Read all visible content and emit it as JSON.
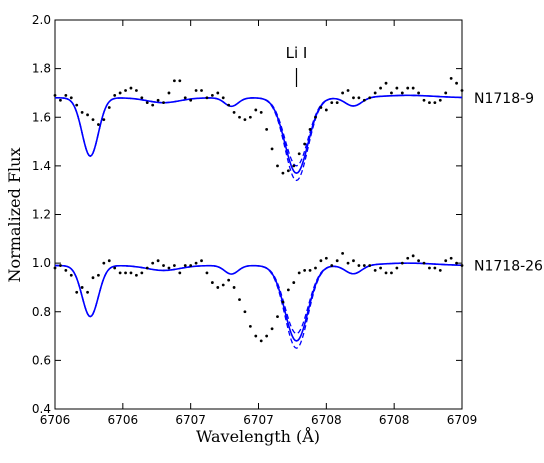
{
  "chart_data": {
    "type": "line",
    "title": "",
    "xlabel": "Wavelength (Å)",
    "ylabel": "Normalized Flux",
    "xlim": [
      6706.0,
      6709.0
    ],
    "ylim": [
      0.4,
      2.0
    ],
    "x_tick_values": [
      6706.0,
      6706.5,
      6707.0,
      6707.5,
      6708.0,
      6708.5,
      6709.0
    ],
    "x_tick_labels": [
      "6706",
      "6706",
      "6707",
      "6707",
      "6708",
      "6708",
      "6709"
    ],
    "y_ticks": [
      0.4,
      0.6,
      0.8,
      1.0,
      1.2,
      1.4,
      1.6,
      1.8,
      2.0
    ],
    "y_tick_labels": [
      "0.4",
      "0.6",
      "0.8",
      "1.0",
      "1.2",
      "1.4",
      "1.6",
      "1.8",
      "2.0"
    ],
    "grid": false,
    "line_color": "#0000ff",
    "dot_color": "#000000",
    "annotation": {
      "label": "Li I",
      "x": 6707.78
    },
    "stars": [
      {
        "label": "N1718-9",
        "continuum": 1.68,
        "blend_depth": 0.24,
        "li_depth": 0.31,
        "li_depth_alt": [
          0.28,
          0.34
        ],
        "obs_x": [
          6706.0,
          6706.04,
          6706.08,
          6706.12,
          6706.16,
          6706.2,
          6706.24,
          6706.28,
          6706.32,
          6706.36,
          6706.4,
          6706.44,
          6706.48,
          6706.52,
          6706.56,
          6706.6,
          6706.64,
          6706.68,
          6706.72,
          6706.76,
          6706.8,
          6706.84,
          6706.88,
          6706.92,
          6706.96,
          6707.0,
          6707.04,
          6707.08,
          6707.12,
          6707.16,
          6707.2,
          6707.24,
          6707.28,
          6707.32,
          6707.36,
          6707.4,
          6707.44,
          6707.48,
          6707.52,
          6707.56,
          6707.6,
          6707.64,
          6707.68,
          6707.72,
          6707.76,
          6707.8,
          6707.84,
          6707.88,
          6707.92,
          6707.96,
          6708.0,
          6708.04,
          6708.08,
          6708.12,
          6708.16,
          6708.2,
          6708.24,
          6708.28,
          6708.32,
          6708.36,
          6708.4,
          6708.44,
          6708.48,
          6708.52,
          6708.56,
          6708.6,
          6708.64,
          6708.68,
          6708.72,
          6708.76,
          6708.8,
          6708.84,
          6708.88,
          6708.92,
          6708.96,
          6709.0
        ],
        "obs_y": [
          1.69,
          1.67,
          1.69,
          1.68,
          1.65,
          1.62,
          1.61,
          1.59,
          1.57,
          1.59,
          1.64,
          1.69,
          1.7,
          1.71,
          1.72,
          1.71,
          1.68,
          1.66,
          1.65,
          1.67,
          1.66,
          1.7,
          1.75,
          1.75,
          1.68,
          1.67,
          1.71,
          1.71,
          1.68,
          1.69,
          1.7,
          1.68,
          1.65,
          1.62,
          1.6,
          1.59,
          1.6,
          1.63,
          1.62,
          1.55,
          1.47,
          1.4,
          1.37,
          1.38,
          1.4,
          1.45,
          1.49,
          1.55,
          1.6,
          1.64,
          1.63,
          1.66,
          1.66,
          1.7,
          1.71,
          1.68,
          1.68,
          1.67,
          1.68,
          1.7,
          1.72,
          1.74,
          1.7,
          1.72,
          1.7,
          1.72,
          1.72,
          1.7,
          1.67,
          1.66,
          1.66,
          1.67,
          1.7,
          1.76,
          1.74,
          1.71
        ]
      },
      {
        "label": "N1718-26",
        "continuum": 0.99,
        "blend_depth": 0.21,
        "li_depth": 0.31,
        "li_depth_alt": [
          0.28,
          0.34
        ],
        "obs_x": [
          6706.0,
          6706.04,
          6706.08,
          6706.12,
          6706.16,
          6706.2,
          6706.24,
          6706.28,
          6706.32,
          6706.36,
          6706.4,
          6706.44,
          6706.48,
          6706.52,
          6706.56,
          6706.6,
          6706.64,
          6706.68,
          6706.72,
          6706.76,
          6706.8,
          6706.84,
          6706.88,
          6706.92,
          6706.96,
          6707.0,
          6707.04,
          6707.08,
          6707.12,
          6707.16,
          6707.2,
          6707.24,
          6707.28,
          6707.32,
          6707.36,
          6707.4,
          6707.44,
          6707.48,
          6707.52,
          6707.56,
          6707.6,
          6707.64,
          6707.68,
          6707.72,
          6707.76,
          6707.8,
          6707.84,
          6707.88,
          6707.92,
          6707.96,
          6708.0,
          6708.04,
          6708.08,
          6708.12,
          6708.16,
          6708.2,
          6708.24,
          6708.28,
          6708.32,
          6708.36,
          6708.4,
          6708.44,
          6708.48,
          6708.52,
          6708.56,
          6708.6,
          6708.64,
          6708.68,
          6708.72,
          6708.76,
          6708.8,
          6708.84,
          6708.88,
          6708.92,
          6708.96,
          6709.0
        ],
        "obs_y": [
          0.98,
          0.99,
          0.97,
          0.95,
          0.88,
          0.9,
          0.88,
          0.94,
          0.95,
          1.0,
          1.01,
          0.98,
          0.96,
          0.96,
          0.96,
          0.95,
          0.96,
          0.98,
          1.0,
          1.01,
          0.99,
          0.98,
          0.99,
          0.96,
          0.99,
          0.99,
          1.0,
          1.01,
          0.96,
          0.92,
          0.9,
          0.91,
          0.93,
          0.9,
          0.85,
          0.8,
          0.74,
          0.7,
          0.68,
          0.7,
          0.73,
          0.78,
          0.84,
          0.89,
          0.92,
          0.96,
          0.97,
          0.97,
          0.98,
          1.01,
          1.02,
          0.99,
          1.01,
          1.04,
          1.0,
          1.01,
          0.99,
          0.99,
          0.99,
          0.97,
          0.98,
          0.96,
          0.96,
          0.98,
          1.0,
          1.02,
          1.03,
          1.01,
          1.0,
          0.98,
          0.98,
          0.97,
          1.01,
          1.02,
          1.0,
          0.99
        ]
      }
    ]
  }
}
